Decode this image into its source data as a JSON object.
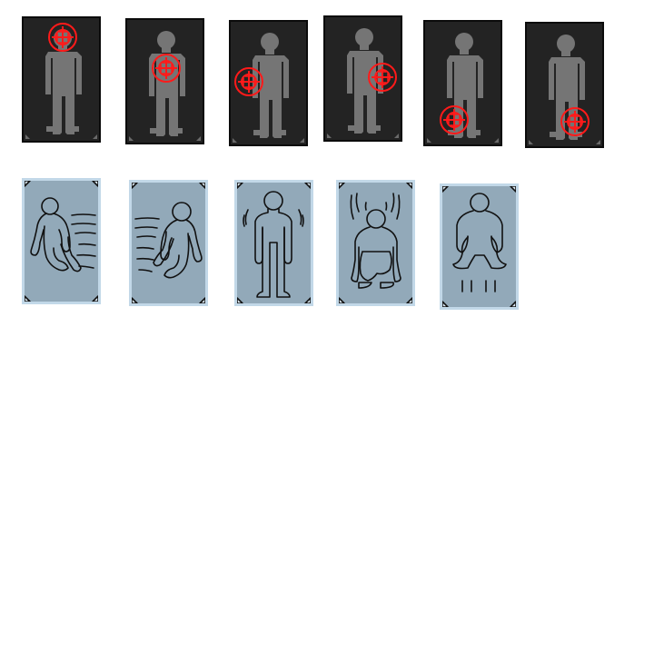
{
  "colors": {
    "target_card_bg": "#232323",
    "target_card_border": "#0b0b0b",
    "silhouette": "#757575",
    "reticle": "#ff1a1a",
    "pose_card_bg": "#92a9b9",
    "pose_card_border": "#c2d8e8",
    "pose_line": "#111111"
  },
  "target_cards": [
    {
      "name": "target-card-head",
      "reticle_icon": "crosshair-icon",
      "target": "head"
    },
    {
      "name": "target-card-chest",
      "reticle_icon": "crosshair-icon",
      "target": "chest"
    },
    {
      "name": "target-card-left-arm",
      "reticle_icon": "crosshair-icon",
      "target": "left-arm"
    },
    {
      "name": "target-card-right-arm",
      "reticle_icon": "crosshair-icon",
      "target": "right-arm"
    },
    {
      "name": "target-card-left-leg",
      "reticle_icon": "crosshair-icon",
      "target": "left-leg"
    },
    {
      "name": "target-card-right-leg",
      "reticle_icon": "crosshair-icon",
      "target": "right-leg"
    }
  ],
  "pose_cards": [
    {
      "name": "pose-card-dash-right",
      "icon": "running-figure-icon"
    },
    {
      "name": "pose-card-dash-left",
      "icon": "running-figure-icon"
    },
    {
      "name": "pose-card-stand",
      "icon": "standing-figure-icon"
    },
    {
      "name": "pose-card-crouch",
      "icon": "crouching-figure-icon"
    },
    {
      "name": "pose-card-squat-jump",
      "icon": "squatting-figure-icon"
    }
  ]
}
